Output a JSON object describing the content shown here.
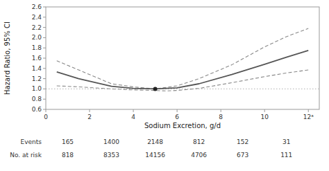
{
  "chart_data": {
    "type": "line",
    "title": "",
    "xlabel": "Sodium Excretion, g/d",
    "ylabel": "Hazard Ratio, 95% CI",
    "xlim": [
      0,
      12.5
    ],
    "ylim": [
      0.6,
      2.6
    ],
    "xticks": [
      0,
      2,
      4,
      6,
      8,
      10,
      {
        "value": 12,
        "label": "12ᵃ"
      }
    ],
    "yticks": [
      0.6,
      0.8,
      {
        "value": 1.0,
        "label": "1.0"
      },
      1.2,
      1.4,
      1.6,
      1.8,
      {
        "value": 2.0,
        "label": "2.0"
      },
      2.2,
      2.4,
      2.6
    ],
    "grid": false,
    "series": [
      {
        "type": "line",
        "color": "#888888",
        "line_style": "dashed",
        "x": [
          0.5,
          1.5,
          3.0,
          4.0,
          5.0,
          6.0,
          7.0,
          8.5,
          10.0,
          11.0,
          12.0
        ],
        "values": [
          1.55,
          1.37,
          1.1,
          1.04,
          1.0,
          1.06,
          1.2,
          1.47,
          1.82,
          2.02,
          2.18
        ]
      },
      {
        "type": "line",
        "color": "#888888",
        "line_style": "dashed",
        "x": [
          0.5,
          1.5,
          3.0,
          4.0,
          5.0,
          5.5,
          6.0,
          7.0,
          8.5,
          10.0,
          11.0,
          12.0
        ],
        "values": [
          1.06,
          1.04,
          1.0,
          0.98,
          0.97,
          0.96,
          0.97,
          1.01,
          1.12,
          1.24,
          1.31,
          1.37
        ]
      },
      {
        "type": "line",
        "color": "#555555",
        "line_style": "solid",
        "x": [
          0.5,
          1.5,
          3.0,
          4.0,
          5.0,
          6.0,
          7.0,
          8.5,
          10.0,
          11.0,
          12.0
        ],
        "values": [
          1.33,
          1.2,
          1.05,
          1.01,
          1.0,
          1.02,
          1.1,
          1.28,
          1.48,
          1.62,
          1.75
        ]
      },
      {
        "type": "scatter",
        "color": "#222222",
        "marker": "circle",
        "x": [
          5.0
        ],
        "values": [
          1.0
        ]
      }
    ],
    "ref_line": {
      "y": 1.0,
      "color": "#b0b0b0",
      "line_style": "dotted"
    },
    "table": {
      "x": [
        1,
        3,
        5,
        7,
        9,
        11
      ],
      "rows": [
        {
          "label": "Events",
          "values": [
            165,
            1400,
            2148,
            812,
            152,
            31
          ]
        },
        {
          "label": "No. at risk",
          "values": [
            818,
            8353,
            14156,
            4706,
            673,
            111
          ]
        }
      ]
    }
  }
}
